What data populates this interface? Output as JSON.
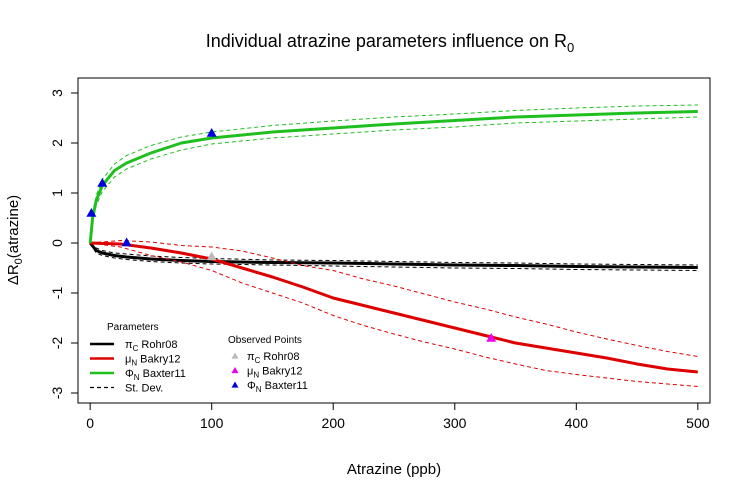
{
  "chart_data": {
    "type": "line",
    "title": "Individual atrazine parameters influence on R",
    "title_subscript": "0",
    "xlabel": "Atrazine (ppb)",
    "ylabel_prefix": "ΔR",
    "ylabel_subscript": "0",
    "ylabel_suffix": "(atrazine)",
    "xlim": [
      -10,
      510
    ],
    "ylim": [
      -3.2,
      3.3
    ],
    "x_ticks": [
      0,
      100,
      200,
      300,
      400,
      500
    ],
    "y_ticks": [
      -3,
      -2,
      -1,
      0,
      1,
      2,
      3
    ],
    "grid": false,
    "series": [
      {
        "name": "πC Rohr08",
        "color": "#000000",
        "x": [
          0,
          5,
          10,
          20,
          30,
          50,
          75,
          100,
          150,
          200,
          250,
          300,
          350,
          400,
          450,
          500
        ],
        "y": [
          0,
          -0.15,
          -0.2,
          -0.25,
          -0.28,
          -0.32,
          -0.35,
          -0.37,
          -0.39,
          -0.4,
          -0.42,
          -0.44,
          -0.45,
          -0.47,
          -0.48,
          -0.49
        ],
        "sd_upper": [
          0,
          -0.1,
          -0.15,
          -0.2,
          -0.22,
          -0.26,
          -0.29,
          -0.31,
          -0.34,
          -0.35,
          -0.37,
          -0.39,
          -0.4,
          -0.42,
          -0.43,
          -0.44
        ],
        "sd_lower": [
          0,
          -0.2,
          -0.25,
          -0.3,
          -0.33,
          -0.37,
          -0.4,
          -0.42,
          -0.44,
          -0.46,
          -0.48,
          -0.5,
          -0.51,
          -0.53,
          -0.54,
          -0.55
        ]
      },
      {
        "name": "μN Bakry12",
        "color": "#dd0000",
        "x": [
          0,
          25,
          50,
          75,
          100,
          125,
          150,
          175,
          200,
          225,
          250,
          275,
          300,
          325,
          350,
          375,
          400,
          425,
          450,
          475,
          500
        ],
        "y": [
          0,
          -0.02,
          -0.1,
          -0.2,
          -0.32,
          -0.5,
          -0.68,
          -0.88,
          -1.1,
          -1.25,
          -1.4,
          -1.55,
          -1.7,
          -1.85,
          -2.0,
          -2.1,
          -2.2,
          -2.3,
          -2.42,
          -2.52,
          -2.58
        ],
        "sd_upper": [
          0,
          0.05,
          0.02,
          -0.05,
          -0.08,
          -0.16,
          -0.3,
          -0.45,
          -0.55,
          -0.72,
          -0.86,
          -1.02,
          -1.18,
          -1.32,
          -1.48,
          -1.62,
          -1.78,
          -1.92,
          -2.05,
          -2.17,
          -2.27
        ],
        "sd_lower": [
          0,
          -0.08,
          -0.25,
          -0.38,
          -0.55,
          -0.8,
          -1.0,
          -1.2,
          -1.45,
          -1.65,
          -1.82,
          -1.98,
          -2.12,
          -2.28,
          -2.42,
          -2.55,
          -2.63,
          -2.7,
          -2.77,
          -2.82,
          -2.87
        ]
      },
      {
        "name": "ΦN Baxter11",
        "color": "#1fbf1f",
        "x": [
          0,
          2,
          5,
          10,
          20,
          30,
          50,
          75,
          100,
          150,
          200,
          250,
          300,
          350,
          400,
          450,
          500
        ],
        "y": [
          0,
          0.5,
          0.85,
          1.15,
          1.45,
          1.6,
          1.8,
          2.0,
          2.1,
          2.22,
          2.3,
          2.38,
          2.45,
          2.52,
          2.56,
          2.6,
          2.63
        ],
        "sd_upper": [
          0,
          0.58,
          0.95,
          1.27,
          1.58,
          1.75,
          1.95,
          2.12,
          2.22,
          2.35,
          2.44,
          2.52,
          2.58,
          2.65,
          2.7,
          2.74,
          2.76
        ],
        "sd_lower": [
          0,
          0.42,
          0.75,
          1.03,
          1.32,
          1.48,
          1.68,
          1.86,
          1.98,
          2.1,
          2.18,
          2.26,
          2.32,
          2.4,
          2.44,
          2.48,
          2.52
        ]
      }
    ],
    "observed_points": [
      {
        "series": "πC Rohr08",
        "color": "#bbbbbb",
        "points": [
          {
            "x": 100,
            "y": -0.27
          }
        ]
      },
      {
        "series": "μN Bakry12",
        "color": "#ee00ee",
        "points": [
          {
            "x": 330,
            "y": -1.9
          }
        ]
      },
      {
        "series": "ΦN Baxter11",
        "color": "#0000dd",
        "points": [
          {
            "x": 1,
            "y": 0.6
          },
          {
            "x": 10,
            "y": 1.2
          },
          {
            "x": 30,
            "y": 0.01
          },
          {
            "x": 100,
            "y": 2.2
          }
        ]
      }
    ],
    "legend_params": {
      "title": "Parameters",
      "items": [
        {
          "sym": "π",
          "sub": "C",
          "text": " Rohr08",
          "color": "#000000",
          "dash": false
        },
        {
          "sym": "μ",
          "sub": "N",
          "text": " Bakry12",
          "color": "#dd0000",
          "dash": false
        },
        {
          "sym": "Φ",
          "sub": "N",
          "text": " Baxter11",
          "color": "#1fbf1f",
          "dash": false
        },
        {
          "sym": "",
          "sub": "",
          "text": "St. Dev.",
          "color": "#000000",
          "dash": true
        }
      ]
    },
    "legend_observed": {
      "title": "Observed Points",
      "items": [
        {
          "sym": "π",
          "sub": "C",
          "text": " Rohr08",
          "color": "#bbbbbb"
        },
        {
          "sym": "μ",
          "sub": "N",
          "text": " Bakry12",
          "color": "#ee00ee"
        },
        {
          "sym": "Φ",
          "sub": "N",
          "text": " Baxter11",
          "color": "#0000dd"
        }
      ]
    }
  }
}
